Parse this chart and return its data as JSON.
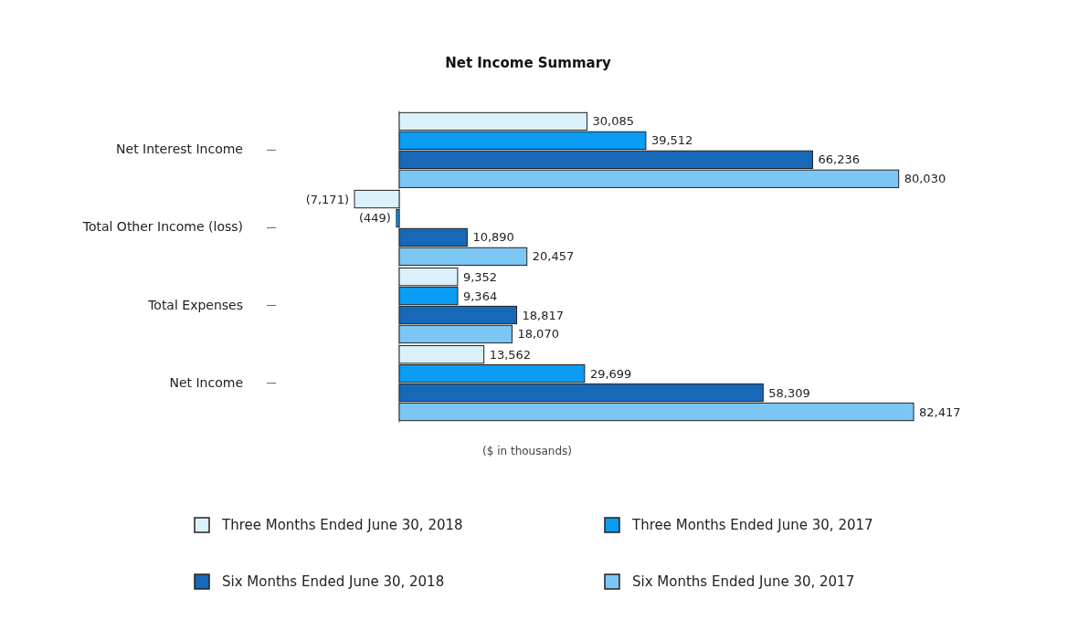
{
  "chart_data": {
    "type": "bar",
    "orientation": "horizontal",
    "title": "Net Income Summary",
    "xlabel": "($ in thousands)",
    "legend": "bottom",
    "categories": [
      "Net Interest Income",
      "Total Other Income (loss)",
      "Total Expenses",
      "Net Income"
    ],
    "series": [
      {
        "name": "Three Months Ended June 30, 2018",
        "color": "#daf1fc",
        "values": [
          30085,
          -7171,
          9352,
          13562
        ],
        "value_labels": [
          "30,085",
          "(7,171)",
          "9,352",
          "13,562"
        ]
      },
      {
        "name": "Three Months Ended June 30, 2017",
        "color": "#0b9cf4",
        "values": [
          39512,
          -449,
          9364,
          29699
        ],
        "value_labels": [
          "39,512",
          "(449)",
          "9,364",
          "29,699"
        ]
      },
      {
        "name": "Six Months Ended June 30, 2018",
        "color": "#1768b8",
        "values": [
          66236,
          10890,
          18817,
          58309
        ],
        "value_labels": [
          "66,236",
          "10,890",
          "18,817",
          "58,309"
        ]
      },
      {
        "name": "Six Months Ended June 30, 2017",
        "color": "#7cc6f3",
        "values": [
          80030,
          20457,
          18070,
          82417
        ],
        "value_labels": [
          "80,030",
          "20,457",
          "18,070",
          "82,417"
        ]
      }
    ]
  }
}
